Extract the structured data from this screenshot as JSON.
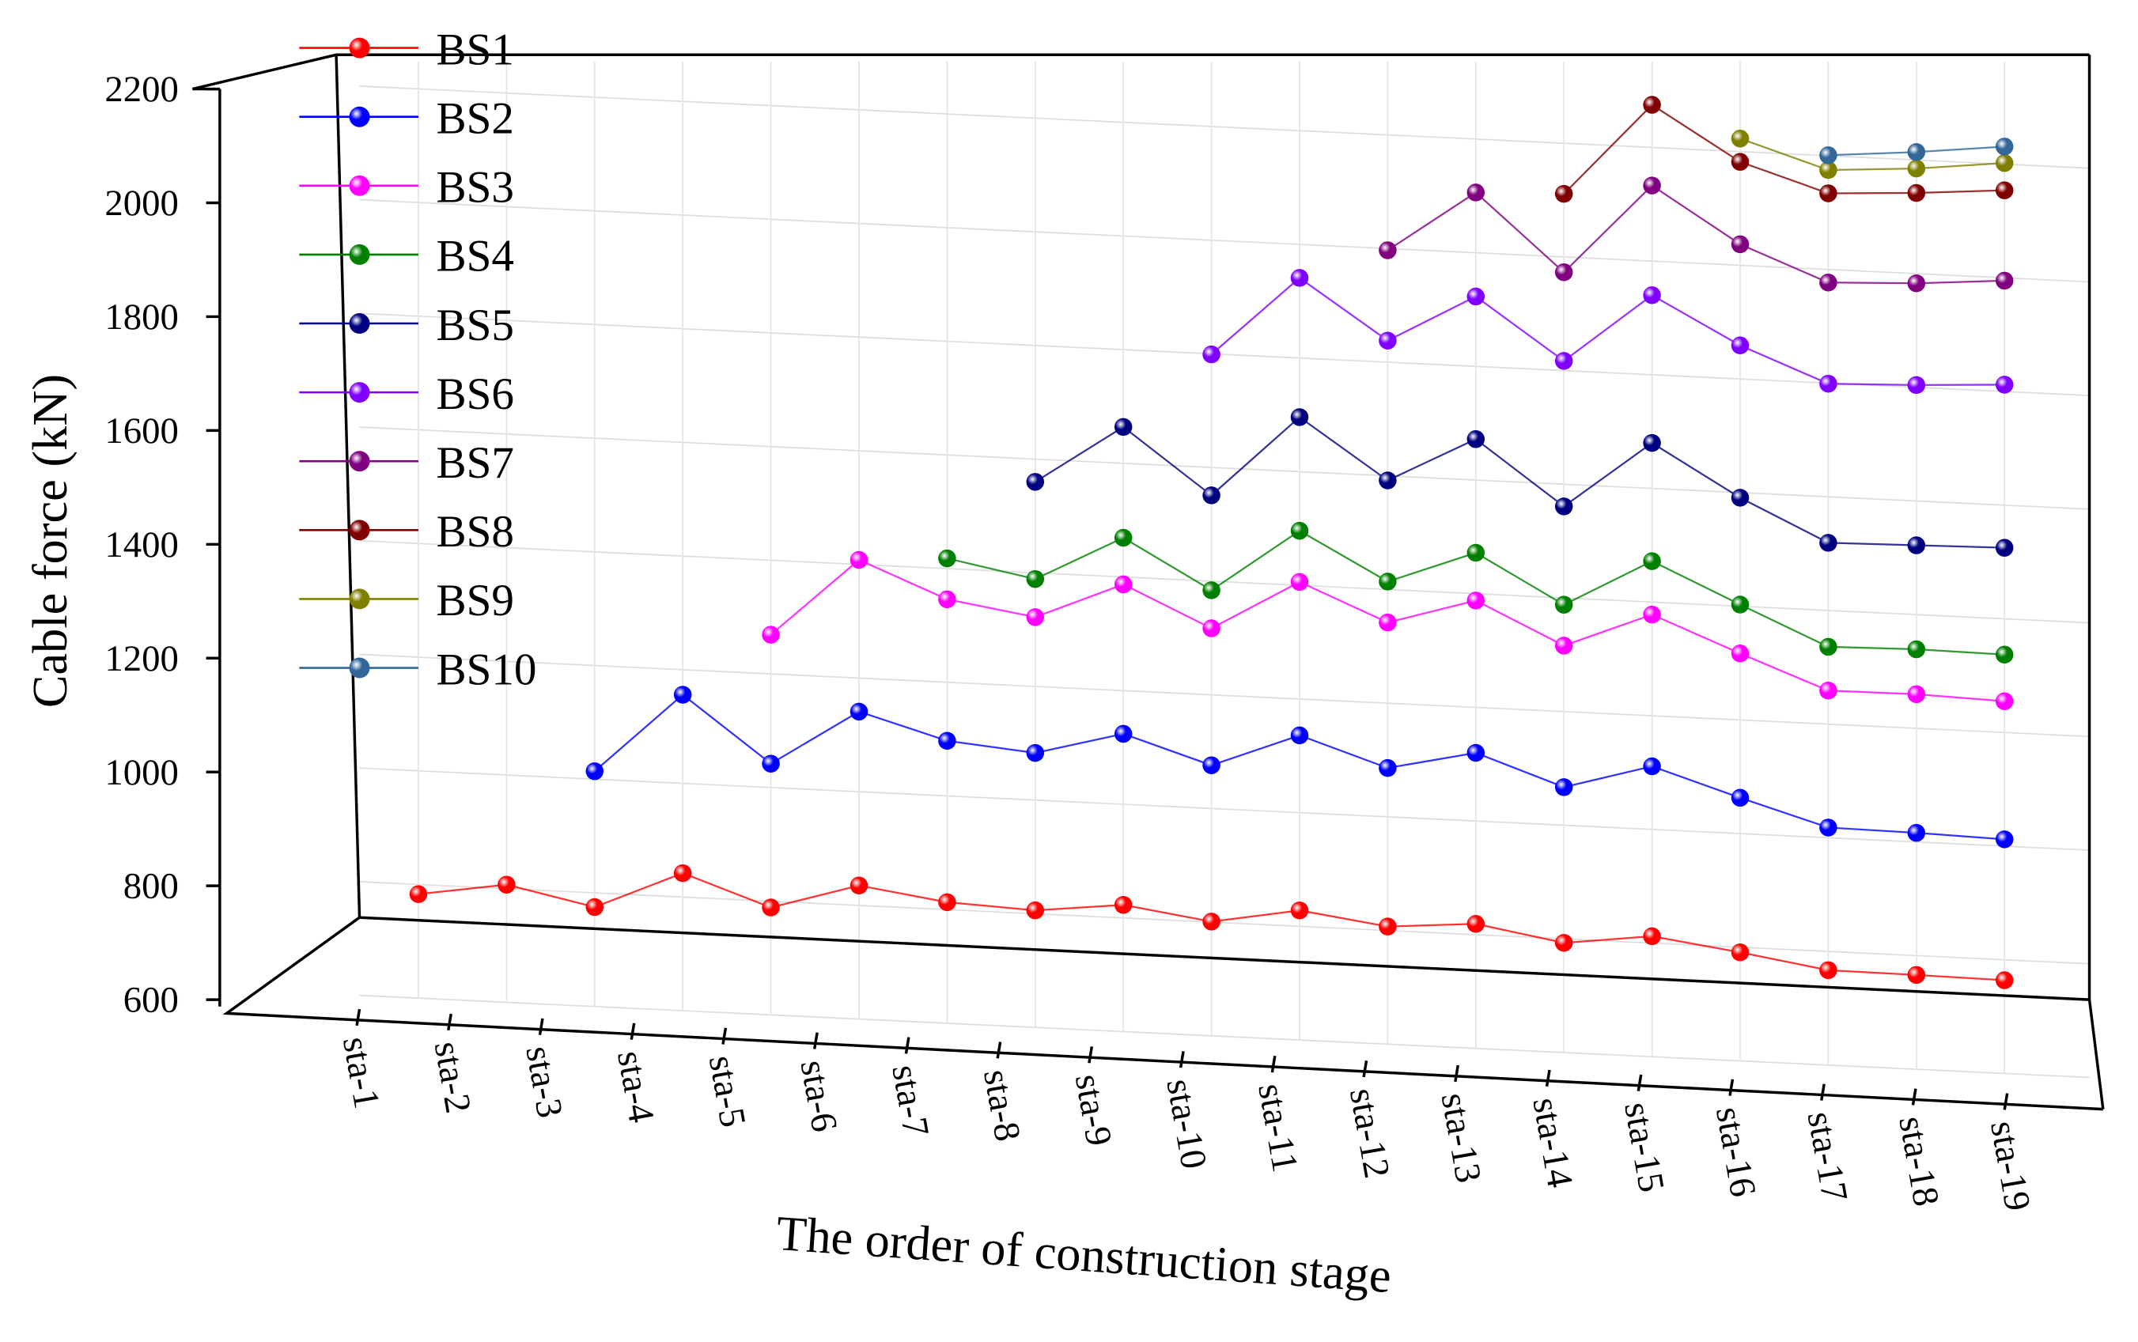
{
  "chart_data": {
    "type": "line",
    "x_label": "The order of construction stage",
    "y_label": "Cable force (kN)",
    "categories": [
      "sta-1",
      "sta-2",
      "sta-3",
      "sta-4",
      "sta-5",
      "sta-6",
      "sta-7",
      "sta-8",
      "sta-9",
      "sta-10",
      "sta-11",
      "sta-12",
      "sta-13",
      "sta-14",
      "sta-15",
      "sta-16",
      "sta-17",
      "sta-18",
      "sta-19"
    ],
    "ylim": [
      600,
      2200
    ],
    "yticks": [
      600,
      800,
      1000,
      1200,
      1400,
      1600,
      1800,
      2000,
      2200
    ],
    "grid": true,
    "legend": "upper left",
    "series": [
      {
        "name": "BS1",
        "color": "#ff0000",
        "values": [
          783,
          807,
          775,
          842,
          789,
          835,
          813,
          806,
          823,
          801,
          828,
          807,
          819,
          793,
          812,
          791,
          767,
          766,
          764
        ]
      },
      {
        "name": "BS2",
        "color": "#0000ff",
        "values": [
          null,
          null,
          1014,
          1156,
          1042,
          1141,
          1097,
          1083,
          1124,
          1076,
          1136,
          1086,
          1120,
          1067,
          1111,
          1063,
          1018,
          1016,
          1012
        ]
      },
      {
        "name": "BS3",
        "color": "#ff00ff",
        "values": [
          null,
          null,
          null,
          null,
          1269,
          1408,
          1346,
          1322,
          1387,
          1317,
          1406,
          1342,
          1388,
          1316,
          1378,
          1317,
          1259,
          1260,
          1255
        ]
      },
      {
        "name": "BS4",
        "color": "#008000",
        "values": [
          null,
          null,
          null,
          null,
          null,
          null,
          1418,
          1389,
          1469,
          1384,
          1496,
          1414,
          1472,
          1388,
          1472,
          1403,
          1336,
          1339,
          1337
        ]
      },
      {
        "name": "BS5",
        "color": "#000080",
        "values": [
          null,
          null,
          null,
          null,
          null,
          null,
          null,
          1560,
          1664,
          1551,
          1696,
          1592,
          1672,
          1561,
          1680,
          1591,
          1519,
          1522,
          1525
        ]
      },
      {
        "name": "BS6",
        "color": "#8000ff",
        "values": [
          null,
          null,
          null,
          null,
          null,
          null,
          null,
          null,
          null,
          1799,
          1941,
          1838,
          1923,
          1817,
          1940,
          1859,
          1799,
          1804,
          1812
        ]
      },
      {
        "name": "BS7",
        "color": "#800080",
        "values": [
          null,
          null,
          null,
          null,
          null,
          null,
          null,
          null,
          null,
          null,
          null,
          1997,
          2106,
          1973,
          2133,
          2037,
          1977,
          1983,
          1995
        ]
      },
      {
        "name": "BS8",
        "color": "#800000",
        "values": [
          null,
          null,
          null,
          null,
          null,
          null,
          null,
          null,
          null,
          null,
          null,
          null,
          null,
          2111,
          2275,
          2182,
          2134,
          2142,
          2154
        ]
      },
      {
        "name": "BS9",
        "color": "#808000",
        "values": [
          null,
          null,
          null,
          null,
          null,
          null,
          null,
          null,
          null,
          null,
          null,
          null,
          null,
          null,
          null,
          2223,
          2175,
          2185,
          2202
        ]
      },
      {
        "name": "BS10",
        "color": "#336699",
        "values": [
          null,
          null,
          null,
          null,
          null,
          null,
          null,
          null,
          null,
          null,
          null,
          null,
          null,
          null,
          null,
          null,
          2201,
          2214,
          2231
        ]
      }
    ]
  }
}
